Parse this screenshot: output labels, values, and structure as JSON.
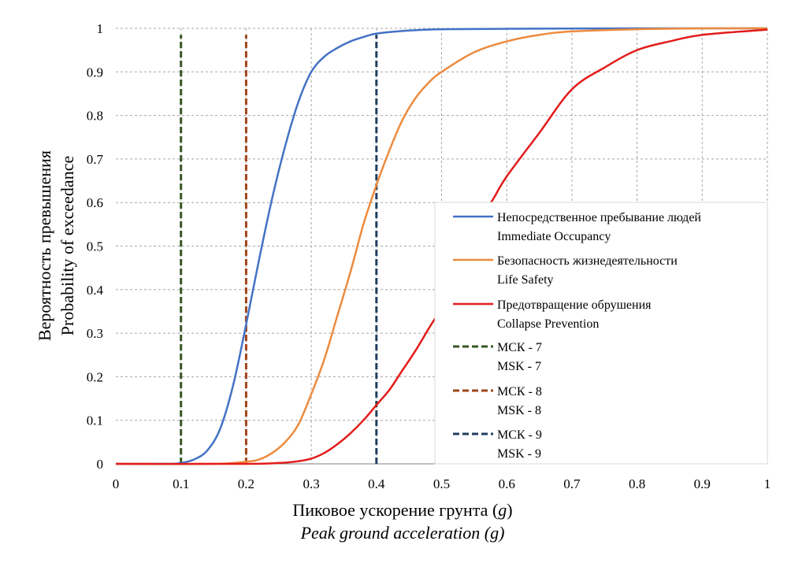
{
  "chart_data": {
    "type": "line",
    "xlabel": "Пиковое ускорение грунта (g)",
    "xlabel_ru": "Пиковое ускорение грунта (",
    "xlabel_ru_unit": "g",
    "xlabel_ru_close": ")",
    "xlabel_en": "Peak ground acceleration (g)",
    "ylabel_ru": "Вероятность превышения",
    "ylabel_en": "Probability of exceedance",
    "xlim": [
      0,
      1
    ],
    "ylim": [
      0,
      1
    ],
    "x_ticks": [
      "0",
      "0.1",
      "0.2",
      "0.3",
      "0.4",
      "0.5",
      "0.6",
      "0.7",
      "0.8",
      "0.9",
      "1"
    ],
    "y_ticks": [
      "0",
      "0.1",
      "0.2",
      "0.3",
      "0.4",
      "0.5",
      "0.6",
      "0.7",
      "0.8",
      "0.9",
      "1"
    ],
    "grid": true,
    "legend_position": "right",
    "series": [
      {
        "name": "Непосредственное пребывание людей",
        "name_en": "Immediate  Occupancy",
        "color": "#4472C4",
        "style": "solid",
        "x": [
          0,
          0.08,
          0.1,
          0.12,
          0.14,
          0.16,
          0.18,
          0.2,
          0.22,
          0.24,
          0.26,
          0.28,
          0.3,
          0.32,
          0.34,
          0.36,
          0.38,
          0.4,
          0.45,
          0.5,
          0.6,
          0.8,
          1.0
        ],
        "y": [
          0,
          0,
          0.002,
          0.01,
          0.03,
          0.08,
          0.18,
          0.32,
          0.47,
          0.61,
          0.73,
          0.83,
          0.9,
          0.935,
          0.955,
          0.97,
          0.98,
          0.988,
          0.995,
          0.998,
          0.999,
          1.0,
          1.0
        ]
      },
      {
        "name": "Безопасность жизнедеятельности",
        "name_en": "Life Safety",
        "color": "#ED8B3E",
        "style": "solid",
        "x": [
          0,
          0.15,
          0.2,
          0.22,
          0.24,
          0.26,
          0.28,
          0.3,
          0.32,
          0.34,
          0.36,
          0.38,
          0.4,
          0.42,
          0.44,
          0.46,
          0.48,
          0.5,
          0.55,
          0.6,
          0.65,
          0.7,
          0.8,
          0.9,
          1.0
        ],
        "y": [
          0,
          0,
          0.005,
          0.01,
          0.025,
          0.05,
          0.09,
          0.16,
          0.24,
          0.34,
          0.44,
          0.55,
          0.64,
          0.72,
          0.79,
          0.84,
          0.875,
          0.9,
          0.945,
          0.97,
          0.985,
          0.993,
          0.998,
          1.0,
          1.0
        ]
      },
      {
        "name": "Предотвращение обрушения",
        "name_en": "Collapse Prevention",
        "color": "#E31B1B",
        "style": "solid",
        "x": [
          0,
          0.2,
          0.25,
          0.28,
          0.3,
          0.32,
          0.34,
          0.36,
          0.38,
          0.4,
          0.42,
          0.44,
          0.46,
          0.48,
          0.5,
          0.52,
          0.54,
          0.56,
          0.58,
          0.6,
          0.65,
          0.7,
          0.75,
          0.8,
          0.85,
          0.9,
          1.0
        ],
        "y": [
          0,
          0,
          0.002,
          0.006,
          0.012,
          0.025,
          0.045,
          0.07,
          0.1,
          0.135,
          0.17,
          0.215,
          0.26,
          0.31,
          0.36,
          0.43,
          0.5,
          0.56,
          0.61,
          0.66,
          0.76,
          0.86,
          0.91,
          0.95,
          0.97,
          0.985,
          0.997
        ]
      }
    ],
    "reference_lines": [
      {
        "name": "МСК - 7",
        "name_en": "MSK - 7",
        "x": 0.1,
        "color": "#375623",
        "style": "dashed"
      },
      {
        "name": "МСК - 8",
        "name_en": "MSK - 8",
        "x": 0.2,
        "color": "#A0461A",
        "style": "dashed"
      },
      {
        "name": "МСК - 9",
        "name_en": "MSK - 9",
        "x": 0.4,
        "color": "#203E5F",
        "style": "dashed"
      }
    ]
  }
}
